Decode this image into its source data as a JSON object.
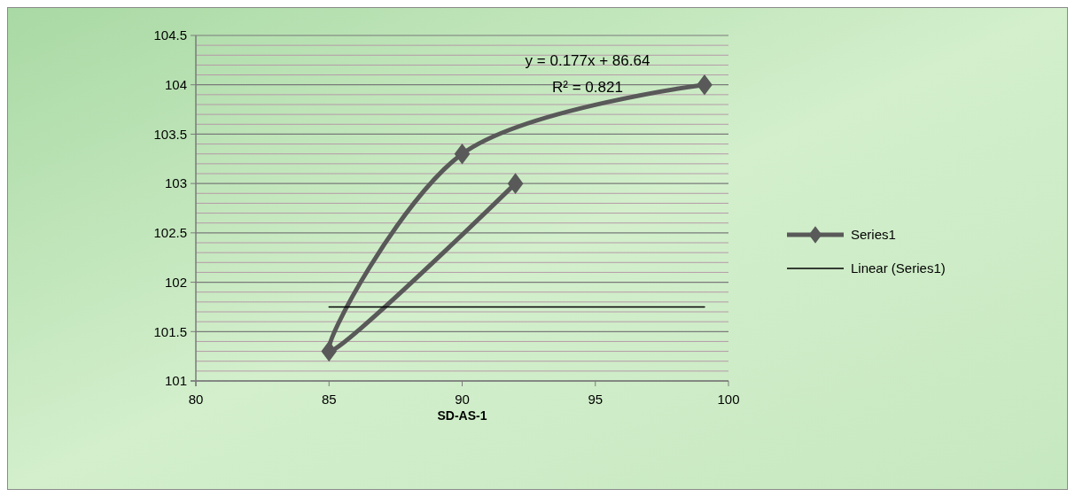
{
  "chart_data": {
    "type": "line",
    "xlabel": "SD-AS-1",
    "xlim": [
      80,
      100
    ],
    "xticks": [
      80,
      85,
      90,
      95,
      100
    ],
    "ylim": [
      101,
      104.5
    ],
    "yticks": [
      101,
      101.5,
      102,
      102.5,
      103,
      103.5,
      104,
      104.5
    ],
    "grid": "y",
    "legend": "right",
    "line_style": "solid",
    "series": [
      {
        "name": "Series1",
        "color": "#595959",
        "marker": "diamond",
        "x": [
          92,
          85,
          90,
          99.1
        ],
        "values": [
          103,
          101.3,
          103.3,
          104
        ]
      },
      {
        "name": "Linear (Series1)",
        "color": "#000000",
        "marker": "none",
        "x": [
          85,
          99.1
        ],
        "values": [
          101.75,
          101.75
        ]
      }
    ],
    "annotations": [
      "y = 0.177x + 86.64",
      "R² = 0.821"
    ]
  }
}
